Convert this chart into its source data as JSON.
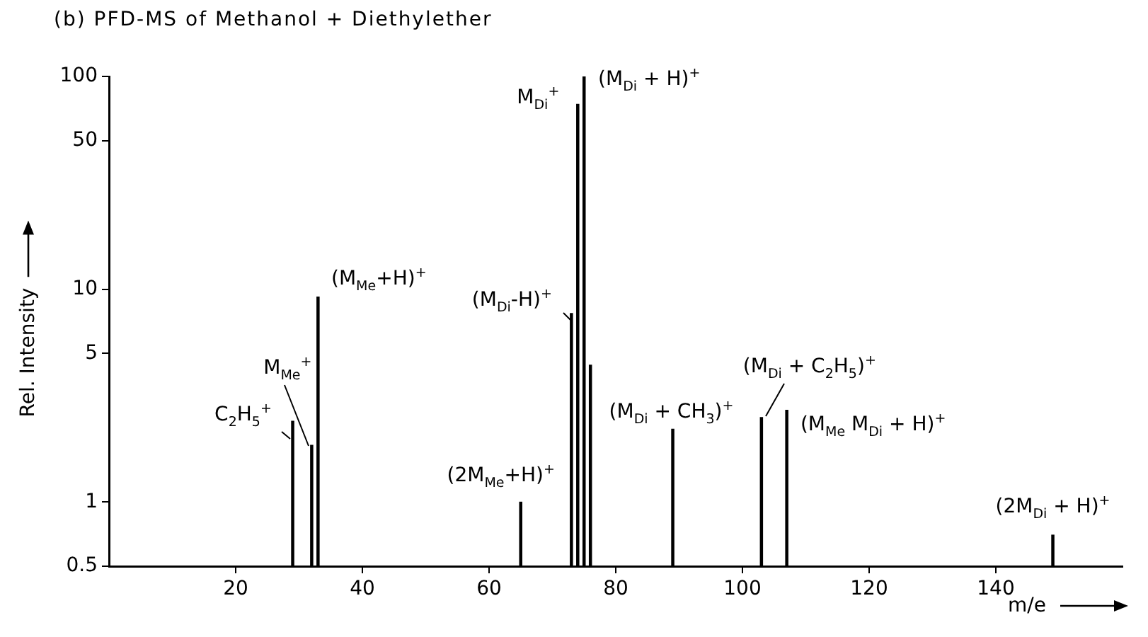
{
  "chart_data": {
    "type": "bar",
    "title": "(b) PFD-MS of Methanol + Diethylether",
    "xlabel": "m/e",
    "ylabel": "Rel. Intensity",
    "x": [
      29,
      32,
      33,
      65,
      73,
      74,
      75,
      76,
      89,
      103,
      107,
      149
    ],
    "values": [
      2.4,
      1.85,
      9.2,
      1,
      7.7,
      74,
      100,
      4.4,
      2.2,
      2.5,
      2.7,
      0.7
    ],
    "color": "#000000",
    "log": "y",
    "grid": false,
    "xlim": [
      0,
      160
    ],
    "xticks": [
      20,
      40,
      60,
      80,
      100,
      120,
      140
    ],
    "ylim": [
      0.5,
      100
    ],
    "yticks": [
      0.5,
      1,
      5,
      10,
      50,
      100
    ],
    "annotations": [
      {
        "text": "C$_{2}$H$_{5}$$^{+}$",
        "x": 29,
        "y": 2.4
      },
      {
        "text": "M$_{Me}$$^{+}$",
        "x": 32,
        "y": 1.85
      },
      {
        "text": "(M$_{Me}$+H)$^{+}$",
        "x": 33,
        "y": 9.2
      },
      {
        "text": "(2M$_{Me}$+H)$^{+}$",
        "x": 65,
        "y": 1
      },
      {
        "text": "(M$_{Di}$-H)$^{+}$",
        "x": 73,
        "y": 7.7
      },
      {
        "text": "M$_{Di}$$^{+}$",
        "x": 74,
        "y": 74
      },
      {
        "text": "(M$_{Di}$ + H)$^{+}$",
        "x": 75,
        "y": 100
      },
      {
        "text": "(M$_{Di}$ + CH$_{3}$)$^{+}$",
        "x": 89,
        "y": 2.2
      },
      {
        "text": "(M$_{Di}$ + C$_{2}$H$_{5}$)$^{+}$",
        "x": 103,
        "y": 2.5
      },
      {
        "text": "(M$_{Me}$ M$_{Di}$ + H)$^{+}$",
        "x": 107,
        "y": 2.7
      },
      {
        "text": "(2M$_{Di}$ + H)$^{+}$",
        "x": 149,
        "y": 0.7
      }
    ]
  }
}
